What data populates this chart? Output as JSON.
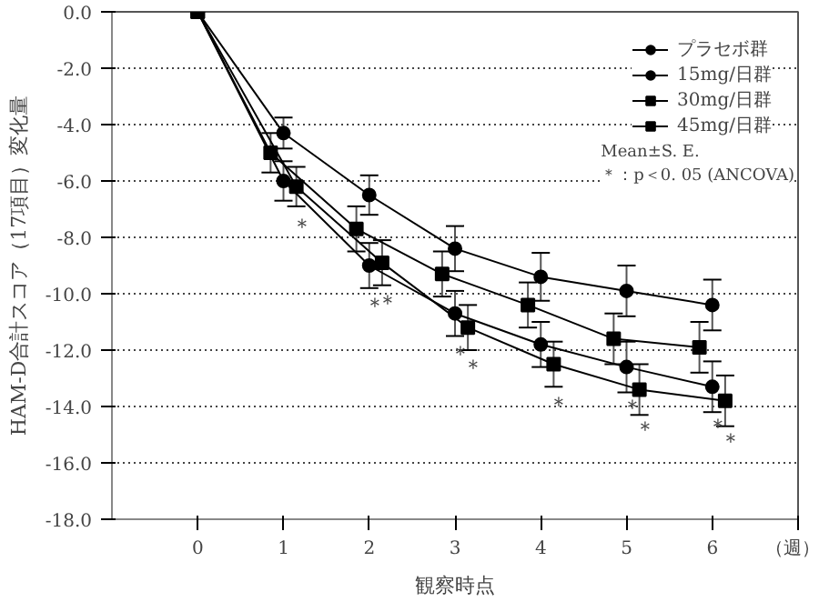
{
  "chart_data": {
    "type": "line",
    "xlabel": "観察時点",
    "ylabel": "HAM-D合計スコア（17項目）変化量",
    "xlim": [
      -1,
      7
    ],
    "xticks": [
      0,
      1,
      2,
      3,
      4,
      5,
      6,
      {
        "value": 7,
        "label": "（週）"
      }
    ],
    "ylim": [
      -18,
      0
    ],
    "yticks": [
      {
        "value": 0,
        "label": "0.0"
      },
      {
        "value": -2,
        "label": "-2.0"
      },
      {
        "value": -4,
        "label": "-4.0"
      },
      {
        "value": -6,
        "label": "-6.0"
      },
      {
        "value": -8,
        "label": "-8.0"
      },
      {
        "value": -10,
        "label": "-10.0"
      },
      {
        "value": -12,
        "label": "-12.0"
      },
      {
        "value": -14,
        "label": "-14.0"
      },
      {
        "value": -16,
        "label": "-16.0"
      },
      {
        "value": -18,
        "label": "-18.0"
      }
    ],
    "grid": "y",
    "legend": "top right",
    "line_style": "solid",
    "series": [
      {
        "name": "プラセボ群",
        "color": "#000000",
        "marker": "circle",
        "x": [
          0,
          1,
          2,
          3,
          4,
          5,
          6
        ],
        "values": [
          0,
          -4.3,
          -6.5,
          -8.4,
          -9.4,
          -9.9,
          -10.4
        ],
        "errors": [
          null,
          0.55,
          0.7,
          0.8,
          0.85,
          0.9,
          0.9
        ]
      },
      {
        "name": "15mg/日群",
        "color": "#000000",
        "marker": "circle",
        "x": [
          0,
          1,
          2,
          3,
          4,
          5,
          6
        ],
        "values": [
          0,
          -6.0,
          -9.0,
          -10.7,
          -11.8,
          -12.6,
          -13.3
        ],
        "errors": [
          null,
          0.7,
          0.8,
          0.8,
          0.8,
          0.9,
          0.9
        ]
      },
      {
        "name": "30mg/日群",
        "color": "#000000",
        "marker": "square",
        "x": [
          0,
          1.15,
          2.15,
          3.15,
          4.15,
          5.15,
          6.15
        ],
        "values": [
          0,
          -6.2,
          -8.9,
          -11.2,
          -12.5,
          -13.4,
          -13.8
        ],
        "errors": [
          null,
          0.7,
          0.8,
          0.8,
          0.8,
          0.9,
          0.9
        ]
      },
      {
        "name": "45mg/日群",
        "color": "#000000",
        "marker": "square",
        "x": [
          0,
          0.85,
          1.85,
          2.85,
          3.85,
          4.85,
          5.85
        ],
        "values": [
          0,
          -5.0,
          -7.7,
          -9.3,
          -10.4,
          -11.6,
          -11.9
        ],
        "errors": [
          null,
          0.7,
          0.8,
          0.8,
          0.8,
          0.9,
          0.9
        ]
      }
    ],
    "annotations": [
      "Mean±S. E.",
      "＊：p＜0. 05 (ANCOVA)",
      {
        "text": "＊",
        "x": 1.15,
        "y": -6.2
      },
      {
        "text": "＊",
        "x": 2,
        "y": -9.0
      },
      {
        "text": "＊",
        "x": 2.15,
        "y": -8.9
      },
      {
        "text": "＊",
        "x": 3,
        "y": -10.7
      },
      {
        "text": "＊",
        "x": 3.15,
        "y": -11.2
      },
      {
        "text": "＊",
        "x": 4.15,
        "y": -12.5
      },
      {
        "text": "＊",
        "x": 5,
        "y": -12.6
      },
      {
        "text": "＊",
        "x": 5.15,
        "y": -13.4
      },
      {
        "text": "＊",
        "x": 6,
        "y": -13.3
      },
      {
        "text": "＊",
        "x": 6.15,
        "y": -13.8
      }
    ]
  }
}
